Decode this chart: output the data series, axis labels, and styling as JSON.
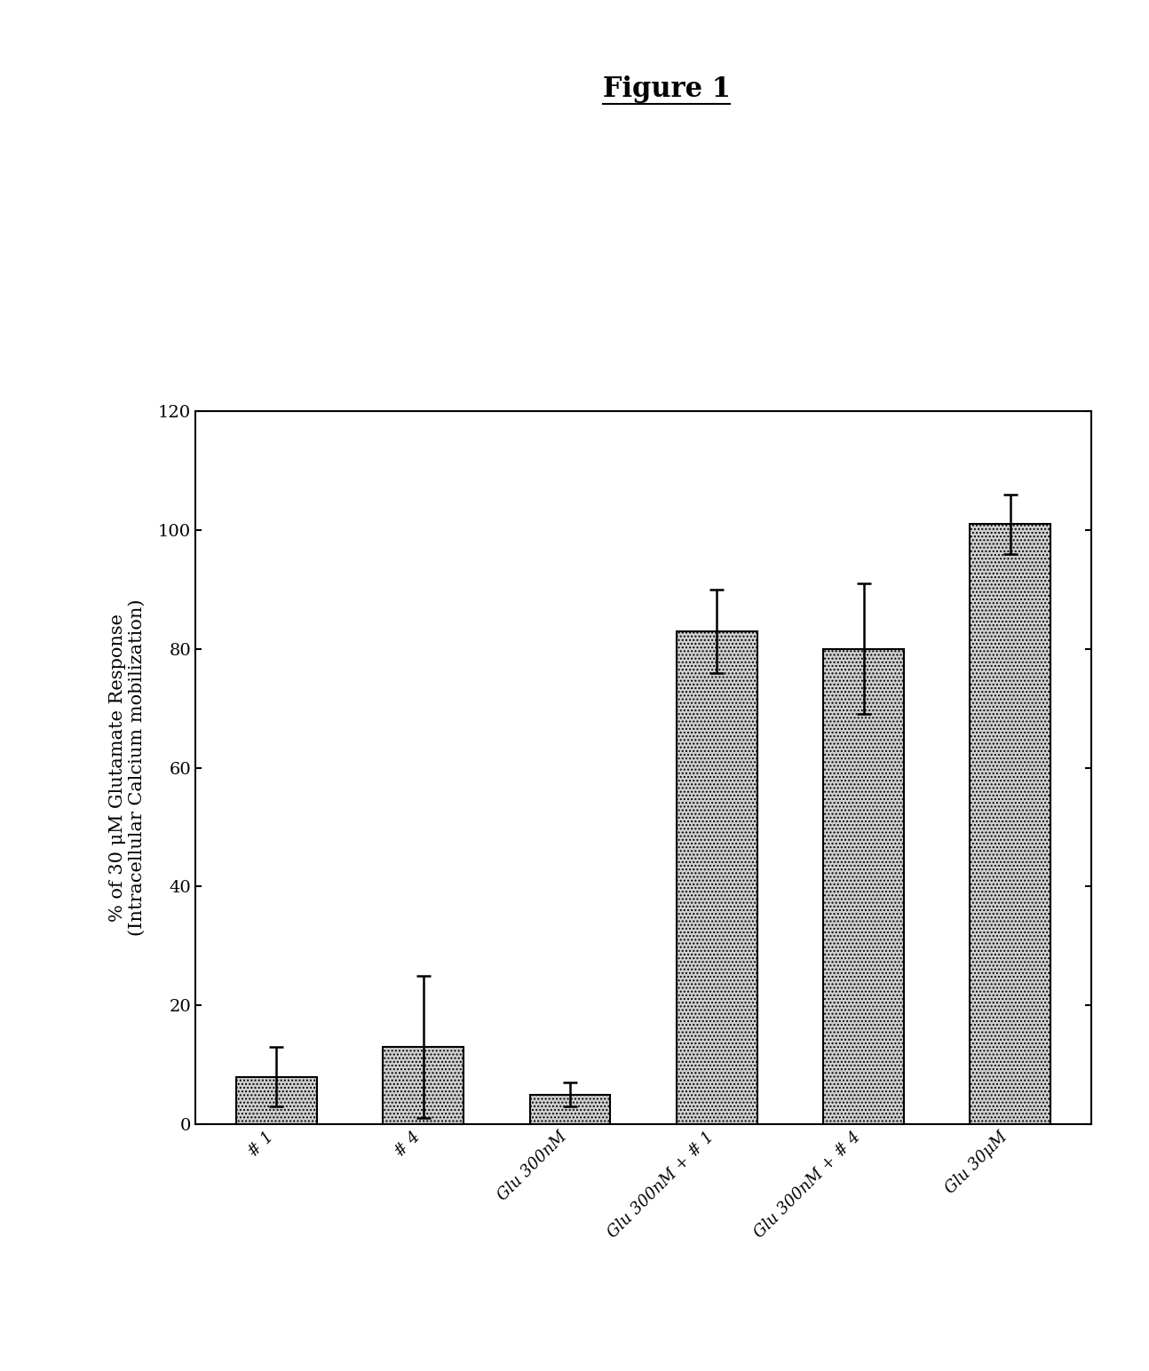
{
  "title": "Figure 1",
  "categories": [
    "# 1",
    "# 4",
    "Glu 300nM",
    "Glu 300nM + # 1",
    "Glu 300nM + # 4",
    "Glu 30μM"
  ],
  "values": [
    8,
    13,
    5,
    83,
    80,
    101
  ],
  "errors": [
    5,
    12,
    2,
    7,
    11,
    5
  ],
  "ylabel_line1": "% of 30 μM Glutamate Response",
  "ylabel_line2": "(Intracellular Calcium mobilization)",
  "ylim": [
    0,
    120
  ],
  "yticks": [
    0,
    20,
    40,
    60,
    80,
    100,
    120
  ],
  "bar_color": "#d0d0d0",
  "bar_hatch": "....",
  "bar_edgecolor": "#000000",
  "error_color": "#000000",
  "background_color": "#ffffff",
  "title_fontsize": 22,
  "axis_label_fontsize": 15,
  "tick_fontsize": 14,
  "xtick_fontsize": 13
}
